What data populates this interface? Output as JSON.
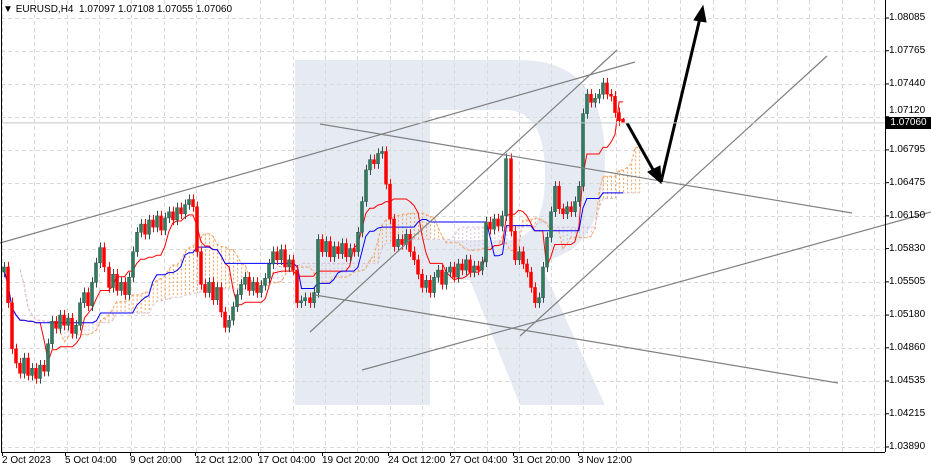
{
  "header": {
    "symbol_label": "EURUSD,H4",
    "open": "1.07097",
    "high": "1.07108",
    "low": "1.07055",
    "close": "1.07060"
  },
  "chart_data": {
    "type": "candlestick",
    "symbol": "EURUSD",
    "timeframe": "H4",
    "current_price": "1.07060",
    "ylim": [
      1.0389,
      1.0825
    ],
    "y_ticks": [
      "1.08085",
      "1.07765",
      "1.07440",
      "1.07120",
      "1.06795",
      "1.06475",
      "1.06150",
      "1.05830",
      "1.05505",
      "1.05180",
      "1.04860",
      "1.04535",
      "1.04215",
      "1.03890"
    ],
    "x_ticks": [
      "2 Oct 2023",
      "5 Oct 04:00",
      "9 Oct 20:00",
      "12 Oct 12:00",
      "17 Oct 04:00",
      "19 Oct 20:00",
      "24 Oct 12:00",
      "27 Oct 04:00",
      "31 Oct 20:00",
      "3 Nov 12:00"
    ],
    "closes": [
      1.0565,
      1.053,
      1.0485,
      1.0471,
      1.0461,
      1.0476,
      1.0459,
      1.0466,
      1.0456,
      1.0469,
      1.0463,
      1.049,
      1.0512,
      1.0505,
      1.0518,
      1.0508,
      1.0515,
      1.05,
      1.0508,
      1.053,
      1.054,
      1.0527,
      1.055,
      1.0569,
      1.0584,
      1.0565,
      1.0545,
      1.0558,
      1.0542,
      1.055,
      1.0538,
      1.0555,
      1.058,
      1.0599,
      1.0607,
      1.0597,
      1.0611,
      1.0604,
      1.0615,
      1.0601,
      1.0613,
      1.0619,
      1.0611,
      1.0623,
      1.0617,
      1.0626,
      1.0631,
      1.0624,
      1.058,
      1.0548,
      1.054,
      1.055,
      1.0533,
      1.0545,
      1.0521,
      1.0506,
      1.0513,
      1.0526,
      1.0538,
      1.0548,
      1.0555,
      1.0542,
      1.055,
      1.054,
      1.0547,
      1.0554,
      1.0568,
      1.058,
      1.0572,
      1.0582,
      1.0565,
      1.0572,
      1.0562,
      1.053,
      1.0532,
      1.0535,
      1.053,
      1.054,
      1.0592,
      1.058,
      1.059,
      1.0575,
      1.0585,
      1.0578,
      1.0588,
      1.0575,
      1.0583,
      1.058,
      1.0599,
      1.0629,
      1.066,
      1.067,
      1.0666,
      1.0676,
      1.0678,
      1.0646,
      1.0612,
      1.0585,
      1.0592,
      1.0587,
      1.0597,
      1.058,
      1.0572,
      1.0558,
      1.0545,
      1.0552,
      1.054,
      1.0555,
      1.0562,
      1.0548,
      1.056,
      1.0565,
      1.0555,
      1.0568,
      1.0562,
      1.0572,
      1.056,
      1.0566,
      1.0562,
      1.057,
      1.0609,
      1.0602,
      1.0612,
      1.0605,
      1.0615,
      1.0671,
      1.06,
      1.0572,
      1.058,
      1.0568,
      1.056,
      1.0545,
      1.053,
      1.0535,
      1.0565,
      1.0594,
      1.0619,
      1.0644,
      1.0622,
      1.0617,
      1.0624,
      1.0619,
      1.0629,
      1.0644,
      1.0715,
      1.0734,
      1.0726,
      1.073,
      1.0734,
      1.0745,
      1.0734,
      1.0732,
      1.0716,
      1.0708,
      1.0706
    ],
    "first_open": 1.056,
    "last_bar": {
      "open": 1.07097,
      "high": 1.07108,
      "low": 1.07055,
      "close": 1.0706
    },
    "indicator": "Ichimoku Kinko Hyo",
    "colors": {
      "bull": "#2e7d5b",
      "bear": "#ff0000",
      "tenkan": "#ff0000",
      "kijun": "#0000ff",
      "senkou_a": "#f4a460",
      "senkou_b": "#d8bfd8",
      "trendline": "#808080",
      "arrow": "#000000",
      "watermark": "#e6ebf3"
    },
    "grid": true
  }
}
